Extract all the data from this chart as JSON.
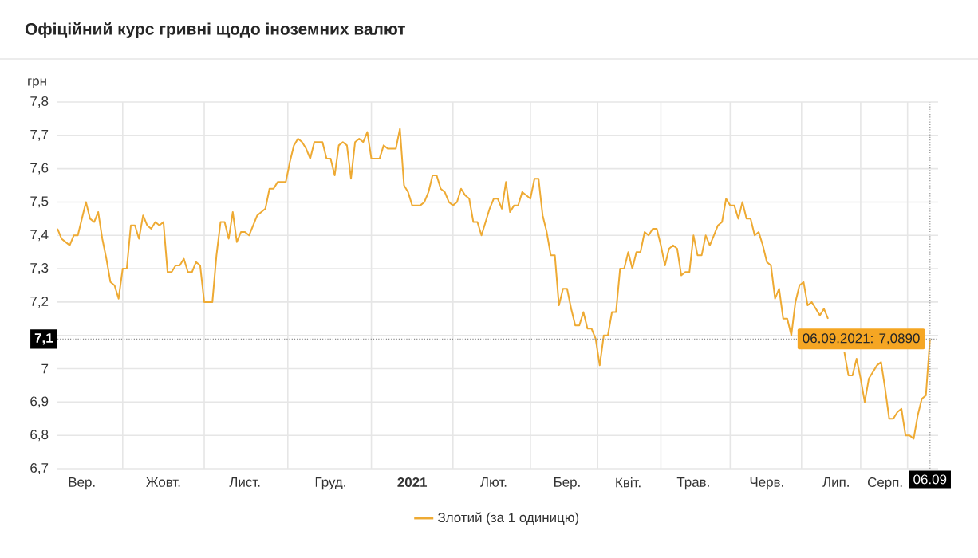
{
  "chart_data": {
    "type": "line",
    "title": "Офіційний курс гривні щодо іноземних валют",
    "ylabel": "грн",
    "categories": [
      null,
      null,
      null,
      null,
      null,
      null,
      "Вер.",
      null,
      null,
      null,
      null,
      null,
      null,
      null,
      null,
      null,
      null,
      null,
      null,
      null,
      null,
      null,
      null,
      null,
      null,
      null,
      "Жовт.",
      null,
      null,
      null,
      null,
      null,
      null,
      null,
      null,
      null,
      null,
      null,
      null,
      null,
      null,
      null,
      null,
      null,
      null,
      null,
      "Лист.",
      null,
      null,
      null,
      null,
      null,
      null,
      null,
      null,
      null,
      null,
      null,
      null,
      null,
      null,
      null,
      null,
      null,
      null,
      null,
      null,
      "Груд.",
      null,
      null,
      null,
      null,
      null,
      null,
      null,
      null,
      null,
      null,
      null,
      null,
      null,
      null,
      null,
      null,
      null,
      null,
      null,
      "**2021**",
      null,
      null,
      null,
      null,
      null,
      null,
      null,
      null,
      null,
      null,
      null,
      null,
      null,
      null,
      null,
      null,
      null,
      null,
      null,
      "Лют.",
      null,
      null,
      null,
      null,
      null,
      null,
      null,
      null,
      null,
      null,
      null,
      null,
      null,
      null,
      null,
      null,
      null,
      "Бер.",
      null,
      null,
      null,
      null,
      null,
      null,
      null,
      null,
      null,
      null,
      null,
      null,
      null,
      null,
      "Квіт.",
      null,
      null,
      null,
      null,
      null,
      null,
      null,
      null,
      null,
      null,
      null,
      null,
      null,
      null,
      null,
      "Трав.",
      null,
      null,
      null,
      null,
      null,
      null,
      null,
      null,
      null,
      null,
      null,
      null,
      null,
      null,
      null,
      null,
      null,
      "Черв.",
      null,
      null,
      null,
      null,
      null,
      null,
      null,
      null,
      null,
      null,
      null,
      null,
      null,
      null,
      null,
      null,
      "Лип.",
      null,
      null,
      null,
      null,
      null,
      null,
      null,
      null,
      null,
      null,
      null,
      "Серп.",
      null,
      null,
      null,
      null,
      null,
      null,
      null,
      null,
      null,
      null,
      "06.09"
    ],
    "series": [
      {
        "name": "Злотий (за 1 одиницю)",
        "color": "#eeaa33",
        "values": [
          7.42,
          7.39,
          7.38,
          7.37,
          7.4,
          7.4,
          7.45,
          7.5,
          7.45,
          7.44,
          7.47,
          7.39,
          7.33,
          7.26,
          7.25,
          7.21,
          7.3,
          7.3,
          7.43,
          7.43,
          7.39,
          7.46,
          7.43,
          7.42,
          7.44,
          7.43,
          7.44,
          7.29,
          7.29,
          7.31,
          7.31,
          7.33,
          7.29,
          7.29,
          7.32,
          7.31,
          7.2,
          7.2,
          7.2,
          7.34,
          7.44,
          7.44,
          7.39,
          7.47,
          7.38,
          7.41,
          7.41,
          7.4,
          7.43,
          7.46,
          7.47,
          7.48,
          7.54,
          7.54,
          7.56,
          7.56,
          7.56,
          7.62,
          7.67,
          7.69,
          7.68,
          7.66,
          7.63,
          7.68,
          7.68,
          7.68,
          7.63,
          7.63,
          7.58,
          7.67,
          7.68,
          7.67,
          7.57,
          7.68,
          7.69,
          7.68,
          7.71,
          7.63,
          7.63,
          7.63,
          7.67,
          7.66,
          7.66,
          7.66,
          7.72,
          7.55,
          7.53,
          7.49,
          7.49,
          7.49,
          7.5,
          7.53,
          7.58,
          7.58,
          7.54,
          7.53,
          7.5,
          7.49,
          7.5,
          7.54,
          7.52,
          7.51,
          7.44,
          7.44,
          7.4,
          7.44,
          7.48,
          7.51,
          7.51,
          7.48,
          7.56,
          7.47,
          7.49,
          7.49,
          7.53,
          7.52,
          7.51,
          7.57,
          7.57,
          7.46,
          7.41,
          7.34,
          7.34,
          7.19,
          7.24,
          7.24,
          7.18,
          7.13,
          7.13,
          7.17,
          7.12,
          7.12,
          7.09,
          7.01,
          7.1,
          7.1,
          7.17,
          7.17,
          7.3,
          7.3,
          7.35,
          7.3,
          7.35,
          7.35,
          7.41,
          7.4,
          7.42,
          7.42,
          7.37,
          7.31,
          7.36,
          7.37,
          7.36,
          7.28,
          7.29,
          7.29,
          7.4,
          7.34,
          7.34,
          7.4,
          7.37,
          7.4,
          7.43,
          7.44,
          7.51,
          7.49,
          7.49,
          7.45,
          7.5,
          7.45,
          7.45,
          7.4,
          7.41,
          7.37,
          7.32,
          7.31,
          7.21,
          7.24,
          7.15,
          7.15,
          7.1,
          7.2,
          7.25,
          7.26,
          7.19,
          7.2,
          7.18,
          7.16,
          7.18,
          7.15,
          null,
          null,
          null,
          7.05,
          6.98,
          6.98,
          7.03,
          6.97,
          6.9,
          6.97,
          6.99,
          7.01,
          7.02,
          6.94,
          6.85,
          6.85,
          6.87,
          6.88,
          6.8,
          6.8,
          6.79,
          6.86,
          6.91,
          6.92,
          7.089
        ]
      }
    ],
    "ylim": [
      6.7,
      7.8
    ],
    "yticks": [
      {
        "value": 6.7,
        "label": "6,7"
      },
      {
        "value": 6.8,
        "label": "6,8"
      },
      {
        "value": 6.9,
        "label": "6,9"
      },
      7,
      {
        "value": 7.1,
        "label": null
      },
      {
        "value": 7.2,
        "label": "7,2"
      },
      {
        "value": 7.3,
        "label": "7,3"
      },
      {
        "value": 7.4,
        "label": "7,4"
      },
      {
        "value": 7.5,
        "label": "7,5"
      },
      {
        "value": 7.6,
        "label": "7,6"
      },
      {
        "value": 7.7,
        "label": "7,7"
      },
      {
        "value": 7.8,
        "label": "7,8"
      }
    ],
    "grid": true,
    "legend": "bottom",
    "marker": "none",
    "line_style": "solid",
    "ref_lines": [
      {
        "axis": "y",
        "value": 7.089,
        "label": "7,1",
        "line_style": "dotted"
      },
      {
        "axis": "x",
        "value": "06.09",
        "line_style": "dotted"
      }
    ],
    "annotations": [
      {
        "text": "06.09.2021: 7,0890",
        "x": "06.09",
        "y": 7.089
      }
    ]
  }
}
